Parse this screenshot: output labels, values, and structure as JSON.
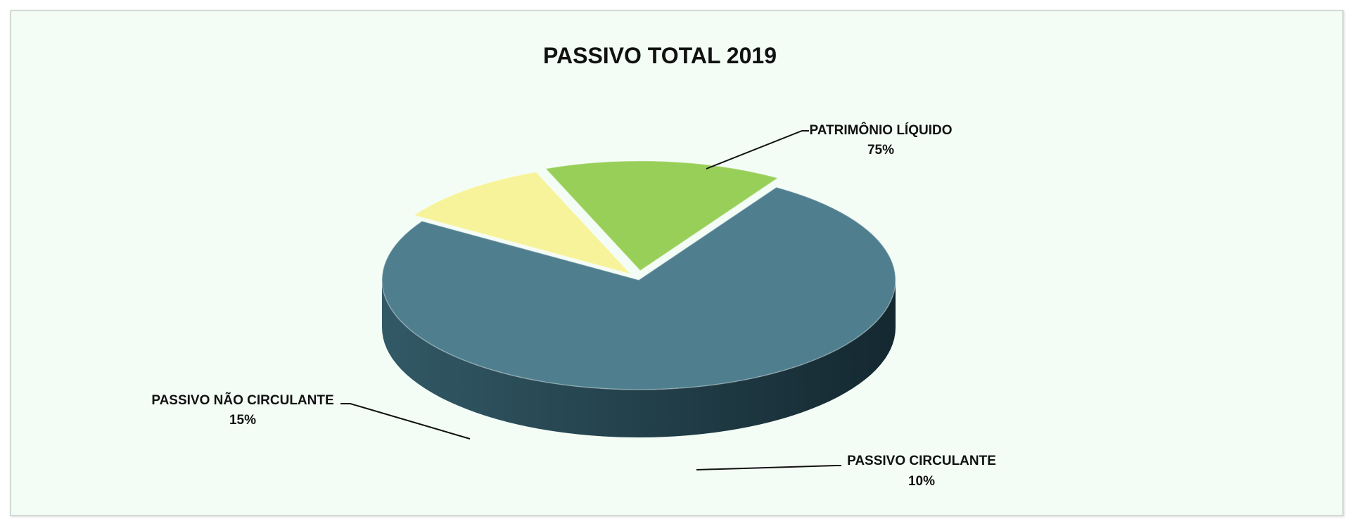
{
  "chart_data": {
    "type": "pie",
    "title": "PASSIVO TOTAL 2019",
    "slices": [
      {
        "label": "PATRIMÔNIO LÍQUIDO",
        "value": 75,
        "value_label": "75%",
        "color": "#4f7f8f",
        "side_color": "#1f3a44"
      },
      {
        "label": "PASSIVO CIRCULANTE",
        "value": 10,
        "value_label": "10%",
        "color": "#f7f39a",
        "side_color": "#8c8a55"
      },
      {
        "label": "PASSIVO NÃO CIRCULANTE",
        "value": 15,
        "value_label": "15%",
        "color": "#98cf58",
        "side_color": "#5c8d2a"
      }
    ],
    "style": "3d-exploded",
    "background": "#f3fdf6"
  }
}
